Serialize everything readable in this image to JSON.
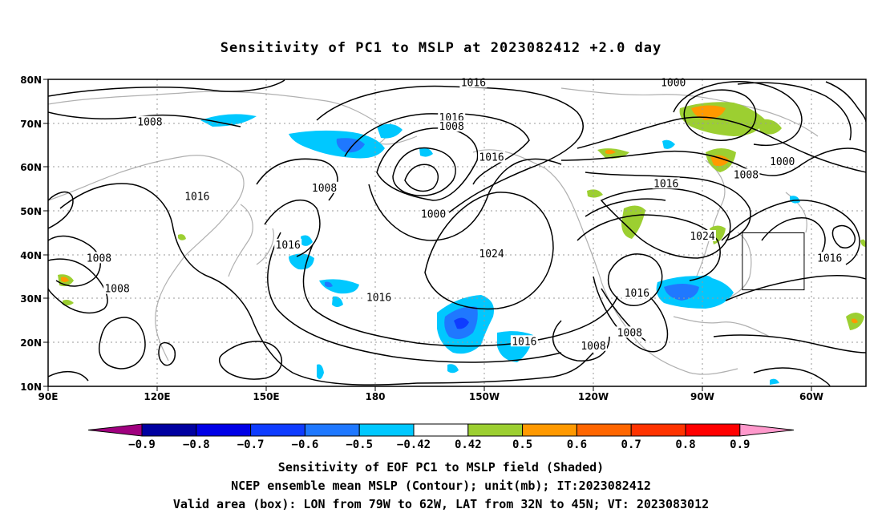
{
  "title": "Sensitivity of PC1 to MSLP at 2023082412 +2.0 day",
  "map": {
    "lat_labels": [
      "80N",
      "70N",
      "60N",
      "50N",
      "40N",
      "30N",
      "20N",
      "10N"
    ],
    "lon_labels": [
      "90E",
      "120E",
      "150E",
      "180",
      "150W",
      "120W",
      "90W",
      "60W"
    ],
    "extent": {
      "lon_min": 90,
      "lon_max": 315,
      "lat_min": 10,
      "lat_max": 80
    },
    "contour_labels": [
      {
        "text": "1016",
        "lon": 207,
        "lat": 79
      },
      {
        "text": "1016",
        "lon": 201,
        "lat": 71
      },
      {
        "text": "1008",
        "lon": 201,
        "lat": 69
      },
      {
        "text": "1008",
        "lon": 118,
        "lat": 70
      },
      {
        "text": "1016",
        "lon": 131,
        "lat": 53
      },
      {
        "text": "1008",
        "lon": 166,
        "lat": 55
      },
      {
        "text": "1000",
        "lon": 196,
        "lat": 49
      },
      {
        "text": "1016",
        "lon": 212,
        "lat": 62
      },
      {
        "text": "1016",
        "lon": 156,
        "lat": 42
      },
      {
        "text": "1024",
        "lon": 212,
        "lat": 40
      },
      {
        "text": "1016",
        "lon": 181,
        "lat": 30
      },
      {
        "text": "1016",
        "lon": 221,
        "lat": 20
      },
      {
        "text": "1008",
        "lon": 104,
        "lat": 39
      },
      {
        "text": "1008",
        "lon": 109,
        "lat": 32
      },
      {
        "text": "1000",
        "lon": 262,
        "lat": 79
      },
      {
        "text": "1000",
        "lon": 292,
        "lat": 61
      },
      {
        "text": "1008",
        "lon": 282,
        "lat": 58
      },
      {
        "text": "1016",
        "lon": 260,
        "lat": 56
      },
      {
        "text": "1024",
        "lon": 270,
        "lat": 44
      },
      {
        "text": "1016",
        "lon": 252,
        "lat": 31
      },
      {
        "text": "1008",
        "lon": 250,
        "lat": 22
      },
      {
        "text": "1008",
        "lon": 240,
        "lat": 19
      },
      {
        "text": "1016",
        "lon": 305,
        "lat": 39
      }
    ],
    "valid_box": {
      "lon_min": 281,
      "lon_max": 298,
      "lat_min": 32,
      "lat_max": 45
    }
  },
  "colorbar": {
    "labels": [
      "-0.9",
      "-0.8",
      "-0.7",
      "-0.6",
      "-0.5",
      "-0.42",
      "0.42",
      "0.5",
      "0.6",
      "0.7",
      "0.8",
      "0.9"
    ],
    "colors": [
      "#a0007f",
      "#0000a0",
      "#0000e6",
      "#0f3cff",
      "#1f78ff",
      "#00c8ff",
      "#ffffff",
      "#9ccf31",
      "#ff9900",
      "#ff6600",
      "#ff3300",
      "#ff0000",
      "#ff99cc"
    ]
  },
  "captions": {
    "line1": "Sensitivity of EOF PC1 to MSLP field (Shaded)",
    "line2": "NCEP ensemble mean MSLP (Contour); unit(mb); IT:2023082412",
    "line3": "Valid area (box): LON from 79W to 62W, LAT from 32N to 45N; VT: 2023083012"
  }
}
